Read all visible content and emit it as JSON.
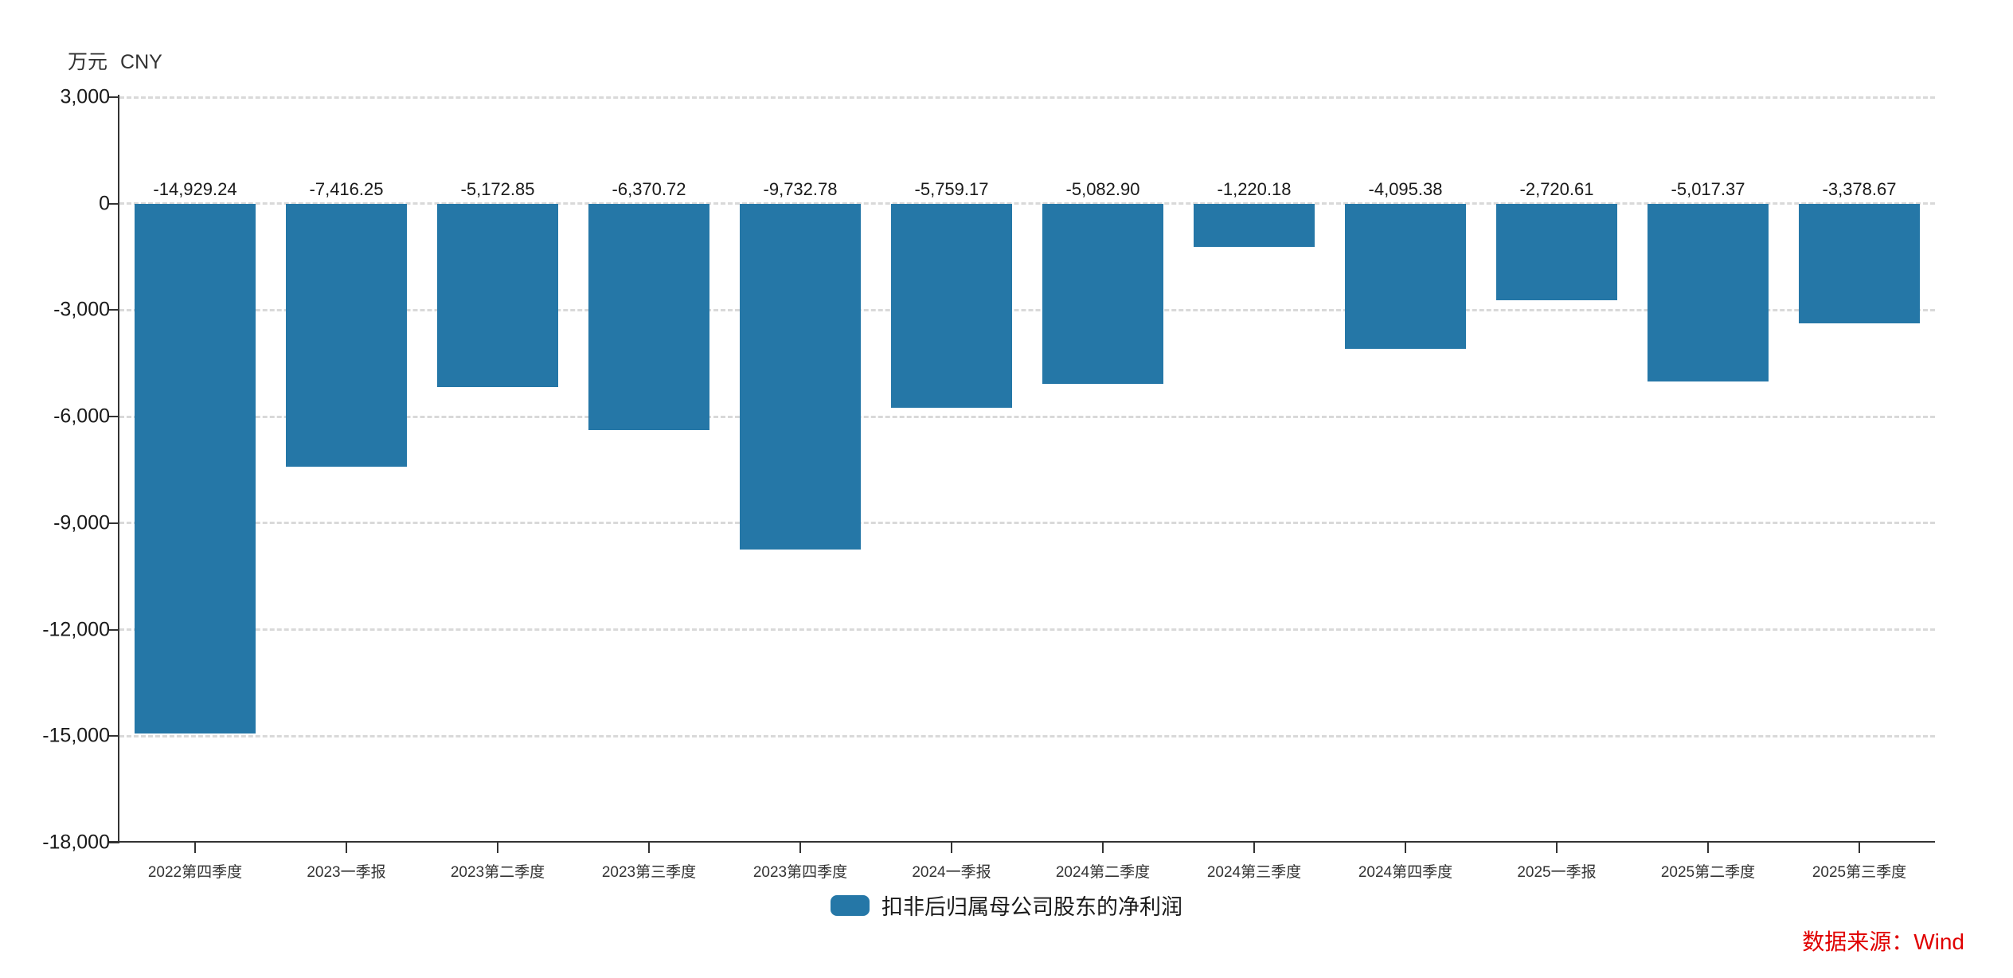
{
  "header": {
    "unit": "万元",
    "currency": "CNY"
  },
  "legend": {
    "label": "扣非后归属母公司股东的净利润"
  },
  "source": {
    "label": "数据来源：Wind",
    "color": "#e00000"
  },
  "colors": {
    "bar": "#2577a7",
    "axis": "#333333",
    "grid": "#d9d9d9",
    "text": "#1a1a1a"
  },
  "chart_data": {
    "type": "bar",
    "title": "",
    "ylabel": "万元 CNY",
    "categories": [
      "2022第四季度",
      "2023一季报",
      "2023第二季度",
      "2023第三季度",
      "2023第四季度",
      "2024一季报",
      "2024第二季度",
      "2024第三季度",
      "2024第四季度",
      "2025一季报",
      "2025第二季度",
      "2025第三季度"
    ],
    "values": [
      -14929.24,
      -7416.25,
      -5172.85,
      -6370.72,
      -9732.78,
      -5759.17,
      -5082.9,
      -1220.18,
      -4095.38,
      -2720.61,
      -5017.37,
      -3378.67
    ],
    "data_labels": [
      "-14,929.24",
      "-7,416.25",
      "-5,172.85",
      "-6,370.72",
      "-9,732.78",
      "-5,759.17",
      "-5,082.90",
      "-1,220.18",
      "-4,095.38",
      "-2,720.61",
      "-5,017.37",
      "-3,378.67"
    ],
    "series": [
      {
        "name": "扣非后归属母公司股东的净利润",
        "values": [
          -14929.24,
          -7416.25,
          -5172.85,
          -6370.72,
          -9732.78,
          -5759.17,
          -5082.9,
          -1220.18,
          -4095.38,
          -2720.61,
          -5017.37,
          -3378.67
        ]
      }
    ],
    "ylim": [
      -18000,
      3000
    ],
    "ytick_step": 3000,
    "ytick_labels": [
      "3,000",
      "0",
      "-3,000",
      "-6,000",
      "-9,000",
      "-12,000",
      "-15,000",
      "-18,000"
    ],
    "grid": true,
    "legend_position": "bottom",
    "bar_color": "#2577a7"
  }
}
